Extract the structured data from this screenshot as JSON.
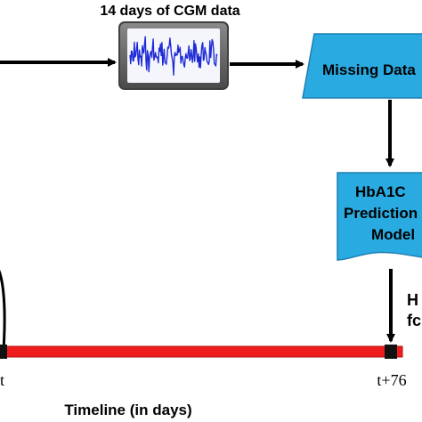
{
  "cgm": {
    "label": "14 days of CGM data"
  },
  "missing_data": {
    "label": "Missing Data"
  },
  "prediction_model": {
    "line1": "HbA1C",
    "line2": "Prediction",
    "line3": "Model"
  },
  "side_label": {
    "line1": "H",
    "line2": "fc"
  },
  "timeline": {
    "start_label": "t",
    "end_label": "t+76",
    "axis_label": "Timeline (in days)"
  },
  "colors": {
    "timeline_bar": "#ee1c1c",
    "shape_fill": "#29abe2",
    "monitor_frame": "#5f5f5f",
    "monitor_screen": "#f4f6fb",
    "signal_line": "#1f2bd6"
  },
  "icons": {
    "monitor": "monitor-icon",
    "signal": "cgm-signal-icon"
  }
}
